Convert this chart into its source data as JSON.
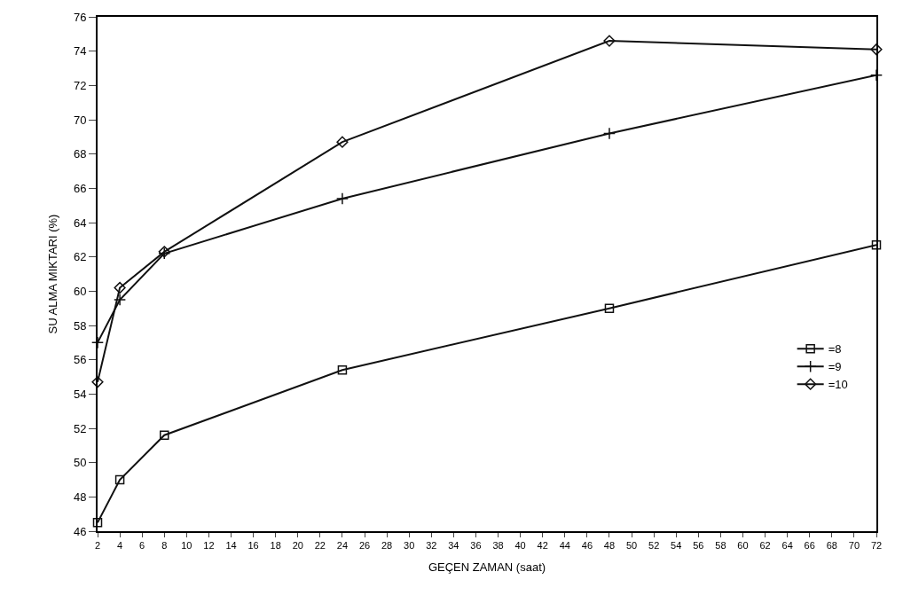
{
  "chart_data": {
    "type": "line",
    "xlabel": "GEÇEN ZAMAN (saat)",
    "ylabel": "SU ALMA MIKTARI (%)",
    "x": [
      2,
      4,
      8,
      24,
      48,
      72
    ],
    "series": [
      {
        "name": "=8",
        "color": "#111111",
        "marker": "square",
        "values": [
          46.5,
          49.0,
          51.6,
          55.4,
          59.0,
          62.7
        ]
      },
      {
        "name": "=9",
        "color": "#111111",
        "marker": "cross",
        "values": [
          57.0,
          59.5,
          62.2,
          65.4,
          69.2,
          72.6
        ]
      },
      {
        "name": "=10",
        "color": "#111111",
        "marker": "diamond",
        "values": [
          54.7,
          60.2,
          62.3,
          68.7,
          74.6,
          74.1
        ]
      }
    ],
    "xlim": [
      2,
      72
    ],
    "xticks": [
      2,
      4,
      6,
      8,
      10,
      12,
      14,
      16,
      18,
      20,
      22,
      24,
      26,
      28,
      30,
      32,
      34,
      36,
      38,
      40,
      42,
      44,
      46,
      48,
      50,
      52,
      54,
      56,
      58,
      60,
      62,
      64,
      66,
      68,
      70,
      72
    ],
    "ylim": [
      46,
      76
    ],
    "yticks": [
      46,
      48,
      50,
      52,
      54,
      56,
      58,
      60,
      62,
      64,
      66,
      68,
      70,
      72,
      74,
      76
    ],
    "legend": "right",
    "line_style": "solid"
  }
}
